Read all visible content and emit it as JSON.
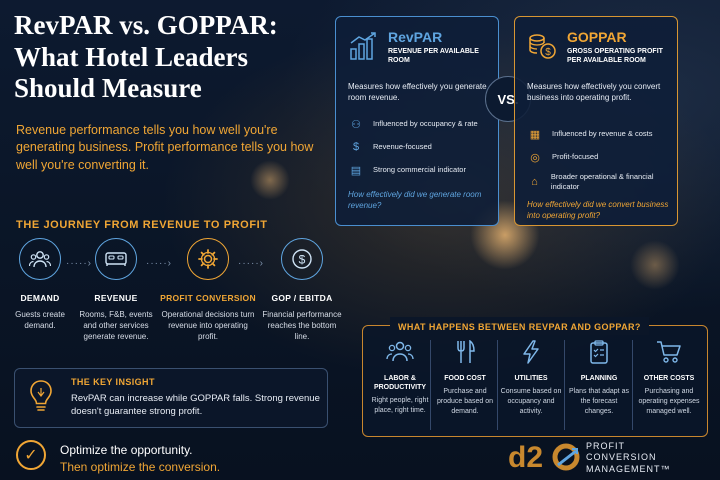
{
  "title": "RevPAR vs. GOPPAR: What Hotel Leaders Should Measure",
  "intro": "Revenue performance tells you how well you're generating business. Profit performance tells you how well you're converting it.",
  "journey": {
    "title": "THE JOURNEY FROM REVENUE TO PROFIT",
    "arrow": "·····›",
    "steps": [
      {
        "name": "DEMAND",
        "desc": "Guests create demand.",
        "icon": "people-icon"
      },
      {
        "name": "REVENUE",
        "desc": "Rooms, F&B, events and other services generate revenue.",
        "icon": "bed-icon"
      },
      {
        "name": "PROFIT CONVERSION",
        "desc": "Operational decisions turn revenue into operating profit.",
        "icon": "gear-icon"
      },
      {
        "name": "GOP / EBITDA",
        "desc": "Financial performance reaches the bottom line.",
        "icon": "dollar-icon"
      }
    ]
  },
  "insight": {
    "title": "THE KEY INSIGHT",
    "text": "RevPAR can increase while GOPPAR falls. Strong revenue doesn't guarantee strong profit.",
    "icon": "lightbulb-icon"
  },
  "optimize": {
    "line1": "Optimize the opportunity.",
    "line2": "Then optimize the conversion.",
    "icon": "check-icon"
  },
  "revpar": {
    "title": "RevPAR",
    "subtitle": "REVENUE PER AVAILABLE ROOM",
    "desc": "Measures how effectively you generate room revenue.",
    "features": [
      {
        "text": "Influenced by occupancy & rate",
        "icon": "people-icon"
      },
      {
        "text": "Revenue-focused",
        "icon": "dollar-icon"
      },
      {
        "text": "Strong commercial indicator",
        "icon": "chart-icon"
      }
    ],
    "question": "How effectively did we generate room revenue?",
    "accent": "#4a8fd0"
  },
  "goppar": {
    "title": "GOPPAR",
    "subtitle": "GROSS OPERATING PROFIT PER AVAILABLE ROOM",
    "desc": "Measures how effectively you convert business into operating profit.",
    "features": [
      {
        "text": "Influenced by revenue & costs",
        "icon": "calculator-icon"
      },
      {
        "text": "Profit-focused",
        "icon": "target-icon"
      },
      {
        "text": "Broader operational & financial indicator",
        "icon": "bank-icon"
      }
    ],
    "question": "How effectively did we convert business into operating profit?",
    "accent": "#d89632"
  },
  "vs": "VS.",
  "between": {
    "title": "WHAT HAPPENS BETWEEN REVPAR AND GOPPAR?",
    "items": [
      {
        "name": "LABOR & PRODUCTIVITY",
        "desc": "Right people, right place, right time.",
        "icon": "people-icon"
      },
      {
        "name": "FOOD COST",
        "desc": "Purchase and produce based on demand.",
        "icon": "fork-knife-icon"
      },
      {
        "name": "UTILITIES",
        "desc": "Consume based on occupancy and activity.",
        "icon": "lightning-icon"
      },
      {
        "name": "PLANNING",
        "desc": "Plans that adapt as the forecast changes.",
        "icon": "clipboard-icon"
      },
      {
        "name": "OTHER COSTS",
        "desc": "Purchasing and operating expenses managed well.",
        "icon": "cart-icon"
      }
    ]
  },
  "brand": {
    "logo": "d2o",
    "line1": "PROFIT",
    "line2": "CONVERSION",
    "line3": "MANAGEMENT™"
  },
  "colors": {
    "orange": "#f0a635",
    "blue": "#5fa5e0",
    "background": "#0d1a30"
  }
}
